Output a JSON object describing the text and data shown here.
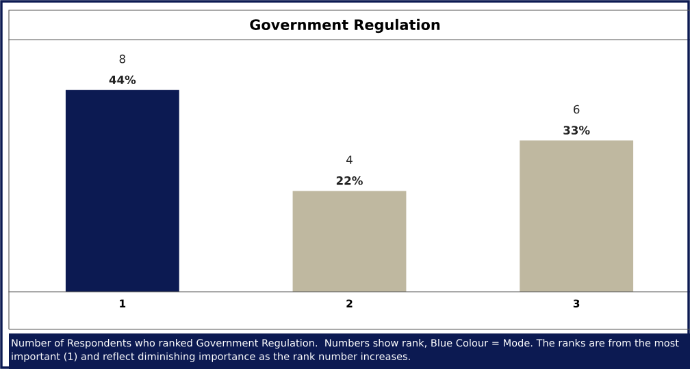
{
  "chart_data": {
    "type": "bar",
    "title": "Government Regulation",
    "categories": [
      "1",
      "2",
      "3"
    ],
    "values": [
      8,
      4,
      6
    ],
    "colors": [
      "#0c1a52",
      "#bfb8a0",
      "#bfb8a0"
    ],
    "value_labels": [
      "8\n44%",
      "4\n22%",
      "6\n33%"
    ],
    "ylim": [
      0,
      10
    ],
    "tick_labels": "x",
    "grid": false,
    "legend": false,
    "annotations": [
      "Number of Respondents who ranked Government Regulation.  Numbers show rank, Blue Colour = Mode. The ranks are from the most important (1) and reflect diminishing importance as the rank number increases."
    ]
  }
}
